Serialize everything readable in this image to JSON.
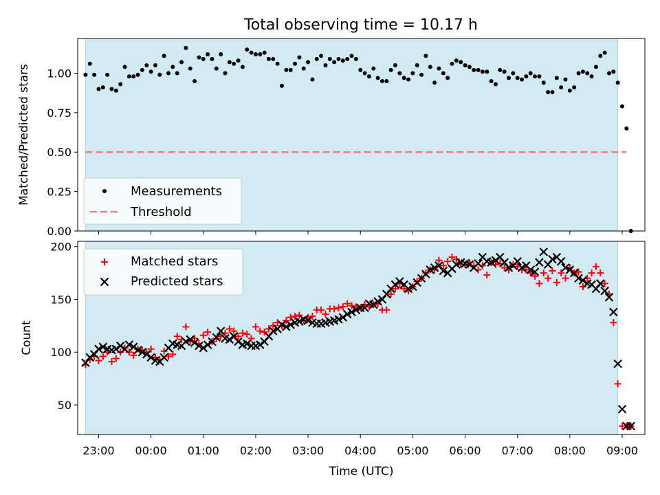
{
  "title": "Total observing time = 10.17 h",
  "colors": {
    "observing_window": "#add8e6",
    "measurements": "#000000",
    "threshold": "#f08080",
    "matched": "#ff0000",
    "predicted": "#000000"
  },
  "chart_data": [
    {
      "type": "scatter",
      "title": "Total observing time = 10.17 h",
      "xlabel": "",
      "ylabel": "Matched/Predicted stars",
      "x_axis": "time",
      "xlim": [
        "22:36",
        "09:26"
      ],
      "ylim": [
        0,
        1.22
      ],
      "yticks": [
        "0.00",
        "0.25",
        "0.50",
        "0.75",
        "1.00"
      ],
      "shaded_region": {
        "from": "22:45",
        "to": "08:55"
      },
      "legend_position": "lower-left",
      "threshold": {
        "name": "Threshold",
        "value": 0.5,
        "from": "22:45",
        "to": "09:05",
        "style": "dashed"
      },
      "series": [
        {
          "name": "Measurements",
          "marker": "dot",
          "x": [
            "22:45",
            "22:50",
            "22:55",
            "23:00",
            "23:05",
            "23:10",
            "23:15",
            "23:20",
            "23:25",
            "23:30",
            "23:35",
            "23:40",
            "23:45",
            "23:50",
            "23:55",
            "00:00",
            "00:05",
            "00:10",
            "00:15",
            "00:20",
            "00:25",
            "00:30",
            "00:35",
            "00:40",
            "00:45",
            "00:50",
            "00:55",
            "01:00",
            "01:05",
            "01:10",
            "01:15",
            "01:20",
            "01:25",
            "01:30",
            "01:35",
            "01:40",
            "01:45",
            "01:50",
            "01:55",
            "02:00",
            "02:05",
            "02:10",
            "02:15",
            "02:20",
            "02:25",
            "02:30",
            "02:35",
            "02:40",
            "02:45",
            "02:50",
            "02:55",
            "03:00",
            "03:05",
            "03:10",
            "03:15",
            "03:20",
            "03:25",
            "03:30",
            "03:35",
            "03:40",
            "03:45",
            "03:50",
            "03:55",
            "04:00",
            "04:05",
            "04:10",
            "04:15",
            "04:20",
            "04:25",
            "04:30",
            "04:35",
            "04:40",
            "04:45",
            "04:50",
            "04:55",
            "05:00",
            "05:05",
            "05:10",
            "05:15",
            "05:20",
            "05:25",
            "05:30",
            "05:35",
            "05:40",
            "05:45",
            "05:50",
            "05:55",
            "06:00",
            "06:05",
            "06:10",
            "06:15",
            "06:20",
            "06:25",
            "06:30",
            "06:35",
            "06:40",
            "06:45",
            "06:50",
            "06:55",
            "07:00",
            "07:05",
            "07:10",
            "07:15",
            "07:20",
            "07:25",
            "07:30",
            "07:35",
            "07:40",
            "07:45",
            "07:50",
            "07:55",
            "08:00",
            "08:05",
            "08:10",
            "08:15",
            "08:20",
            "08:25",
            "08:30",
            "08:35",
            "08:40",
            "08:45",
            "08:50",
            "08:55",
            "09:00",
            "09:05",
            "09:10"
          ],
          "y": [
            0.99,
            1.06,
            0.99,
            0.9,
            0.91,
            0.99,
            0.9,
            0.89,
            0.93,
            1.04,
            0.98,
            0.98,
            0.99,
            1.02,
            1.05,
            1.01,
            1.05,
            0.99,
            1.11,
            1.0,
            1.04,
            1.0,
            1.07,
            1.16,
            1.03,
            0.95,
            1.1,
            1.09,
            1.12,
            1.09,
            1.03,
            1.12,
            1.0,
            1.07,
            1.06,
            1.08,
            1.04,
            1.15,
            1.13,
            1.12,
            1.12,
            1.13,
            1.09,
            1.09,
            1.06,
            0.92,
            1.02,
            1.02,
            1.06,
            1.1,
            1.03,
            1.07,
            0.96,
            1.09,
            1.11,
            1.05,
            1.09,
            1.07,
            1.09,
            1.08,
            1.09,
            1.11,
            1.09,
            1.02,
            1.0,
            0.98,
            1.03,
            0.97,
            0.95,
            0.95,
            1.02,
            1.05,
            1.0,
            0.97,
            0.96,
            1.0,
            1.05,
            0.99,
            1.11,
            1.04,
            0.94,
            1.03,
            1.0,
            0.97,
            1.06,
            1.08,
            1.07,
            1.05,
            1.04,
            1.02,
            1.02,
            1.01,
            1.01,
            0.95,
            0.93,
            1.02,
            1.01,
            0.97,
            1.0,
            0.97,
            0.96,
            0.98,
            1.0,
            0.98,
            0.98,
            0.94,
            0.88,
            0.88,
            0.97,
            0.91,
            0.96,
            0.89,
            0.91,
            1.0,
            1.01,
            1.0,
            0.98,
            1.04,
            1.11,
            1.13,
            1.0,
            1.01,
            0.94,
            0.79,
            0.65,
            0.0
          ]
        }
      ]
    },
    {
      "type": "scatter",
      "title": "",
      "xlabel": "Time (UTC)",
      "ylabel": "Count",
      "x_axis": "time",
      "xlim": [
        "22:36",
        "09:26"
      ],
      "ylim": [
        22,
        205
      ],
      "yticks": [
        "50",
        "100",
        "150",
        "200"
      ],
      "xticks": [
        "23:00",
        "00:00",
        "01:00",
        "02:00",
        "03:00",
        "04:00",
        "05:00",
        "06:00",
        "07:00",
        "08:00",
        "09:00"
      ],
      "shaded_region": {
        "from": "22:45",
        "to": "08:55"
      },
      "legend_position": "upper-left",
      "x": [
        "22:45",
        "22:50",
        "22:55",
        "23:00",
        "23:05",
        "23:10",
        "23:15",
        "23:20",
        "23:25",
        "23:30",
        "23:35",
        "23:40",
        "23:45",
        "23:50",
        "23:55",
        "00:00",
        "00:05",
        "00:10",
        "00:15",
        "00:20",
        "00:25",
        "00:30",
        "00:35",
        "00:40",
        "00:45",
        "00:50",
        "00:55",
        "01:00",
        "01:05",
        "01:10",
        "01:15",
        "01:20",
        "01:25",
        "01:30",
        "01:35",
        "01:40",
        "01:45",
        "01:50",
        "01:55",
        "02:00",
        "02:05",
        "02:10",
        "02:15",
        "02:20",
        "02:25",
        "02:30",
        "02:35",
        "02:40",
        "02:45",
        "02:50",
        "02:55",
        "03:00",
        "03:05",
        "03:10",
        "03:15",
        "03:20",
        "03:25",
        "03:30",
        "03:35",
        "03:40",
        "03:45",
        "03:50",
        "03:55",
        "04:00",
        "04:05",
        "04:10",
        "04:15",
        "04:20",
        "04:25",
        "04:30",
        "04:35",
        "04:40",
        "04:45",
        "04:50",
        "04:55",
        "05:00",
        "05:05",
        "05:10",
        "05:15",
        "05:20",
        "05:25",
        "05:30",
        "05:35",
        "05:40",
        "05:45",
        "05:50",
        "05:55",
        "06:00",
        "06:05",
        "06:10",
        "06:15",
        "06:20",
        "06:25",
        "06:30",
        "06:35",
        "06:40",
        "06:45",
        "06:50",
        "06:55",
        "07:00",
        "07:05",
        "07:10",
        "07:15",
        "07:20",
        "07:25",
        "07:30",
        "07:35",
        "07:40",
        "07:45",
        "07:50",
        "07:55",
        "08:00",
        "08:05",
        "08:10",
        "08:15",
        "08:20",
        "08:25",
        "08:30",
        "08:35",
        "08:40",
        "08:45",
        "08:50",
        "08:55",
        "09:00",
        "09:05",
        "09:10"
      ],
      "series": [
        {
          "name": "Matched stars",
          "marker": "plus",
          "y": [
            88,
            93,
            96,
            92,
            96,
            100,
            91,
            94,
            100,
            104,
            100,
            97,
            103,
            102,
            100,
            103,
            95,
            93,
            101,
            96,
            98,
            115,
            112,
            124,
            110,
            113,
            108,
            116,
            119,
            110,
            113,
            115,
            118,
            122,
            120,
            115,
            118,
            117,
            113,
            124,
            120,
            119,
            122,
            125,
            128,
            125,
            130,
            133,
            134,
            135,
            130,
            133,
            134,
            140,
            140,
            136,
            141,
            141,
            142,
            143,
            146,
            144,
            143,
            142,
            145,
            143,
            145,
            146,
            140,
            140,
            155,
            160,
            165,
            160,
            158,
            162,
            167,
            170,
            175,
            178,
            178,
            187,
            182,
            186,
            190,
            188,
            183,
            183,
            185,
            182,
            178,
            182,
            173,
            185,
            183,
            184,
            180,
            178,
            183,
            181,
            178,
            178,
            175,
            172,
            165,
            175,
            170,
            177,
            166,
            175,
            170,
            180,
            175,
            176,
            162,
            170,
            175,
            181,
            175,
            165,
            155,
            128,
            70,
            30,
            30,
            30
          ],
          "color": "#ff0000"
        },
        {
          "name": "Predicted stars",
          "marker": "x",
          "y": [
            90,
            95,
            98,
            103,
            105,
            103,
            102,
            103,
            106,
            103,
            107,
            105,
            102,
            100,
            98,
            95,
            92,
            91,
            95,
            104,
            108,
            107,
            106,
            110,
            112,
            109,
            106,
            104,
            107,
            110,
            114,
            120,
            113,
            112,
            115,
            110,
            107,
            108,
            106,
            106,
            107,
            110,
            115,
            120,
            122,
            126,
            124,
            126,
            128,
            129,
            131,
            130,
            128,
            127,
            127,
            128,
            129,
            130,
            131,
            133,
            136,
            138,
            140,
            142,
            142,
            146,
            145,
            148,
            150,
            155,
            160,
            164,
            167,
            164,
            160,
            162,
            166,
            170,
            174,
            178,
            180,
            182,
            177,
            175,
            179,
            183,
            185,
            184,
            183,
            180,
            184,
            190,
            186,
            185,
            187,
            190,
            185,
            180,
            182,
            186,
            180,
            182,
            178,
            176,
            185,
            195,
            183,
            188,
            190,
            186,
            180,
            178,
            175,
            170,
            168,
            165,
            164,
            160,
            165,
            158,
            152,
            138,
            89,
            46,
            30,
            30
          ],
          "color": "#000000"
        }
      ]
    }
  ]
}
